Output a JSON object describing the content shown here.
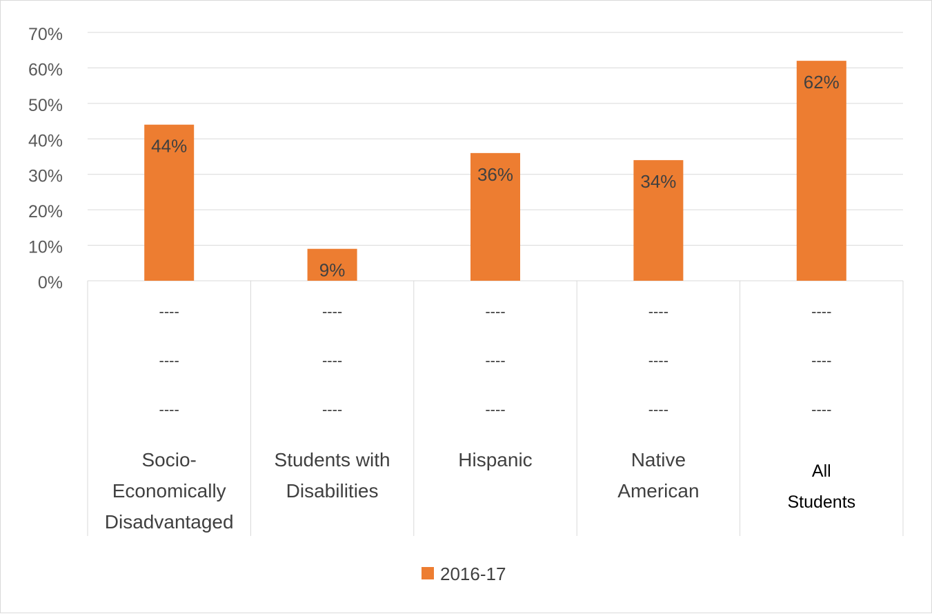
{
  "chart_data": {
    "type": "bar",
    "categories": [
      [
        "Socio-",
        "Economically",
        "Disadvantaged"
      ],
      [
        "Students with",
        "Disabilities"
      ],
      [
        "Hispanic"
      ],
      [
        "Native",
        "American"
      ],
      [
        "All",
        "Students"
      ]
    ],
    "sub_labels": [
      [
        "----",
        "----",
        "----"
      ],
      [
        "----",
        "----",
        "----"
      ],
      [
        "----",
        "----",
        "----"
      ],
      [
        "----",
        "----",
        "----"
      ],
      [
        "----",
        "----",
        "----"
      ]
    ],
    "series": [
      {
        "name": "2016-17",
        "values": [
          44,
          9,
          36,
          34,
          62
        ],
        "data_labels": [
          "44%",
          "9%",
          "36%",
          "34%",
          "62%"
        ]
      }
    ],
    "ylim": [
      0,
      70
    ],
    "yticks": [
      0,
      10,
      20,
      30,
      40,
      50,
      60,
      70
    ],
    "ytick_labels": [
      "0%",
      "10%",
      "20%",
      "30%",
      "40%",
      "50%",
      "60%",
      "70%"
    ],
    "grid": true,
    "legend_position": "bottom",
    "bar_color": "#ed7d31",
    "grid_color": "#d9d9d9",
    "text_color": "#595959",
    "label_color": "#404040"
  }
}
